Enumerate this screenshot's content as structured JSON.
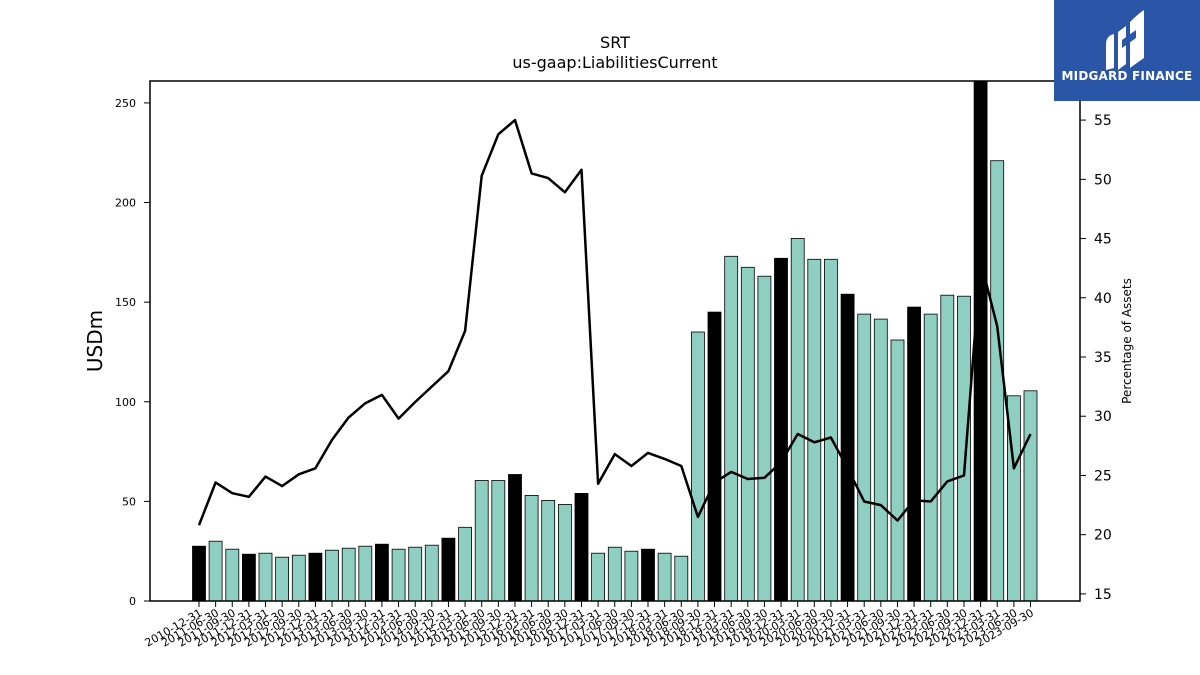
{
  "logo": {
    "text": "MIDGARD FINANCE",
    "icon": "midgard-m-icon",
    "background": "#2b56a8"
  },
  "chart_data": {
    "type": "bar",
    "title": "SRT",
    "subtitle": "us-gaap:LiabilitiesCurrent",
    "ylabel": "USDm",
    "y2label": "Percentage of Assets",
    "ylim": [
      0,
      261
    ],
    "y2lim": [
      14.4,
      58.3
    ],
    "yticks": [
      0,
      50,
      100,
      150,
      200,
      250
    ],
    "y2ticks": [
      15,
      20,
      25,
      30,
      35,
      40,
      45,
      50,
      55
    ],
    "bar_color_quarter": "#8ecfc1",
    "bar_color_year_end": "#000000",
    "line_color": "#000000",
    "grid": false,
    "categories": [
      "2010-12-31",
      "2011-06-30",
      "2011-09-30",
      "2011-12-31",
      "2012-03-31",
      "2012-06-30",
      "2012-09-30",
      "2012-12-31",
      "2013-03-31",
      "2013-06-30",
      "2013-09-30",
      "2013-12-31",
      "2014-03-31",
      "2014-06-30",
      "2014-09-30",
      "2014-12-31",
      "2015-03-31",
      "2015-06-30",
      "2015-09-30",
      "2015-12-31",
      "2016-03-31",
      "2016-06-30",
      "2016-09-30",
      "2016-12-31",
      "2017-03-31",
      "2017-06-30",
      "2017-09-30",
      "2017-12-31",
      "2018-03-31",
      "2018-06-30",
      "2018-09-30",
      "2018-12-31",
      "2019-03-31",
      "2019-06-30",
      "2019-09-30",
      "2019-12-31",
      "2020-03-31",
      "2020-06-30",
      "2020-09-30",
      "2020-12-31",
      "2021-03-31",
      "2021-06-30",
      "2021-09-30",
      "2021-12-31",
      "2022-03-31",
      "2022-06-30",
      "2022-09-30",
      "2022-12-31",
      "2023-03-31",
      "2023-06-30",
      "2023-09-30"
    ],
    "series": [
      {
        "kind": "bar",
        "values": [
          27.5,
          30.0,
          26.0,
          23.5,
          24.0,
          22.0,
          23.0,
          24.0,
          25.5,
          26.5,
          27.5,
          28.5,
          26.0,
          27.0,
          28.0,
          31.5,
          37.0,
          60.5,
          60.5,
          63.5,
          53.0,
          50.5,
          48.5,
          54.0,
          24.0,
          27.0,
          25.0,
          26.0,
          24.0,
          22.5,
          135.0,
          145.0,
          173.0,
          167.5,
          163.0,
          172.0,
          182.0,
          171.5,
          171.5,
          154.0,
          144.0,
          141.5,
          131.0,
          147.5,
          144.0,
          153.5,
          153.0,
          261.0,
          221.0,
          103.0,
          105.5
        ],
        "year_end": [
          true,
          false,
          false,
          true,
          false,
          false,
          false,
          true,
          false,
          false,
          false,
          true,
          false,
          false,
          false,
          true,
          false,
          false,
          false,
          true,
          false,
          false,
          false,
          true,
          false,
          false,
          false,
          true,
          false,
          false,
          false,
          true,
          false,
          false,
          false,
          true,
          false,
          false,
          false,
          true,
          false,
          false,
          false,
          true,
          false,
          false,
          false,
          true,
          false,
          false,
          false
        ]
      },
      {
        "kind": "line",
        "axis": "right",
        "values": [
          20.8,
          24.4,
          23.5,
          23.2,
          24.9,
          24.1,
          25.1,
          25.6,
          28.0,
          29.9,
          31.1,
          31.8,
          29.8,
          31.2,
          32.5,
          33.8,
          37.2,
          50.3,
          53.8,
          55.0,
          50.5,
          50.1,
          48.9,
          50.8,
          24.3,
          26.8,
          25.8,
          26.9,
          26.4,
          25.8,
          21.5,
          24.4,
          25.3,
          24.7,
          24.8,
          26.1,
          28.5,
          27.8,
          28.2,
          25.6,
          22.8,
          22.5,
          21.2,
          22.9,
          22.8,
          24.5,
          25.0,
          43.1,
          37.6,
          25.6,
          28.5
        ]
      }
    ]
  }
}
